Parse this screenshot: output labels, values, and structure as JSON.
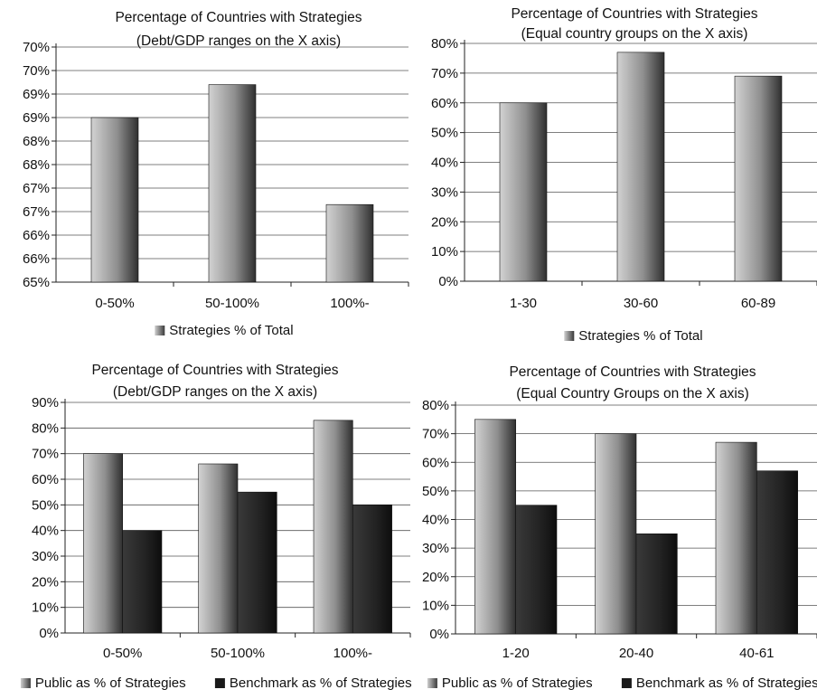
{
  "chart_data": [
    {
      "type": "bar",
      "title": "Percentage of Countries with Strategies",
      "subtitle": "(Debt/GDP ranges on the X axis)",
      "categories": [
        "0-50%",
        "50-100%",
        "100%-"
      ],
      "series": [
        {
          "name": "Strategies % of Total",
          "values": [
            0.685,
            0.692,
            0.6665
          ],
          "color": "#9a9a9a"
        }
      ],
      "ylim": [
        0.65,
        0.7
      ],
      "yticks": [
        0.65,
        0.655,
        0.66,
        0.665,
        0.67,
        0.675,
        0.68,
        0.685,
        0.69,
        0.695,
        0.7
      ],
      "yticklabels": [
        "65%",
        "66%",
        "66%",
        "67%",
        "67%",
        "68%",
        "68%",
        "69%",
        "69%",
        "70%",
        "70%"
      ],
      "grid": true,
      "legend_position": "bottom"
    },
    {
      "type": "bar",
      "title": "Percentage of Countries with Strategies",
      "subtitle": "(Equal country groups on the X axis)",
      "categories": [
        "1-30",
        "30-60",
        "60-89"
      ],
      "series": [
        {
          "name": "Strategies % of Total",
          "values": [
            0.6,
            0.77,
            0.69
          ],
          "color": "#9a9a9a"
        }
      ],
      "ylim": [
        0,
        0.8
      ],
      "yticks": [
        0,
        0.1,
        0.2,
        0.3,
        0.4,
        0.5,
        0.6,
        0.7,
        0.8
      ],
      "yticklabels": [
        "0%",
        "10%",
        "20%",
        "30%",
        "40%",
        "50%",
        "60%",
        "70%",
        "80%"
      ],
      "grid": true,
      "legend_position": "bottom"
    },
    {
      "type": "bar",
      "title": "Percentage of Countries with Strategies",
      "subtitle": "(Debt/GDP ranges on the X axis)",
      "categories": [
        "0-50%",
        "50-100%",
        "100%-"
      ],
      "series": [
        {
          "name": "Public as % of Strategies",
          "values": [
            0.7,
            0.66,
            0.83
          ],
          "color": "#9a9a9a"
        },
        {
          "name": "Benchmark as % of Strategies",
          "values": [
            0.4,
            0.55,
            0.5
          ],
          "color": "#1a1a1a"
        }
      ],
      "ylim": [
        0,
        0.9
      ],
      "yticks": [
        0,
        0.1,
        0.2,
        0.3,
        0.4,
        0.5,
        0.6,
        0.7,
        0.8,
        0.9
      ],
      "yticklabels": [
        "0%",
        "10%",
        "20%",
        "30%",
        "40%",
        "50%",
        "60%",
        "70%",
        "80%",
        "90%"
      ],
      "grid": true,
      "legend_position": "bottom"
    },
    {
      "type": "bar",
      "title": "Percentage of Countries with Strategies",
      "subtitle": "(Equal Country Groups on the X axis)",
      "categories": [
        "1-20",
        "20-40",
        "40-61"
      ],
      "series": [
        {
          "name": "Public as % of Strategies",
          "values": [
            0.75,
            0.7,
            0.67
          ],
          "color": "#9a9a9a"
        },
        {
          "name": "Benchmark as % of Strategies",
          "values": [
            0.45,
            0.35,
            0.57
          ],
          "color": "#1a1a1a"
        }
      ],
      "ylim": [
        0,
        0.8
      ],
      "yticks": [
        0,
        0.1,
        0.2,
        0.3,
        0.4,
        0.5,
        0.6,
        0.7,
        0.8
      ],
      "yticklabels": [
        "0%",
        "10%",
        "20%",
        "30%",
        "40%",
        "50%",
        "60%",
        "70%",
        "80%"
      ],
      "grid": true,
      "legend_position": "bottom"
    }
  ]
}
